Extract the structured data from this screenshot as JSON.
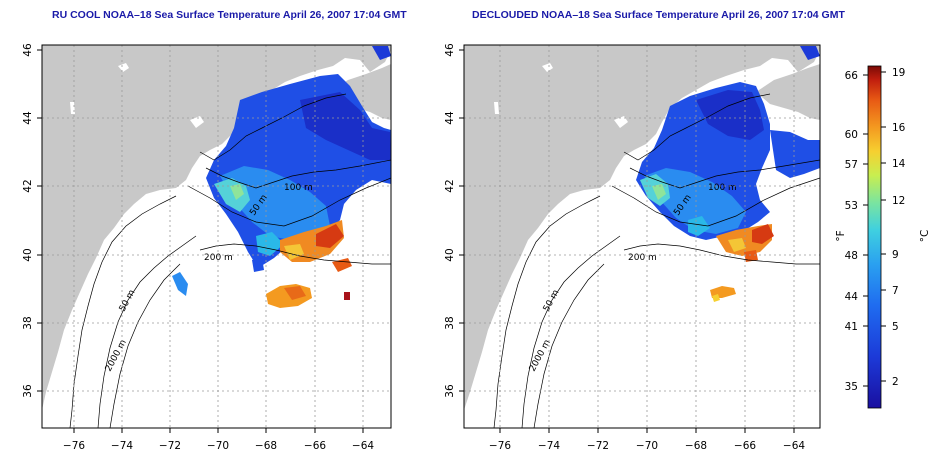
{
  "panels": [
    {
      "title": "RU COOL NOAA–18 Sea Surface Temperature April 26, 2007 17:04 GMT",
      "contour_labels": [
        "100 m",
        "50 m",
        "200 m",
        "50 m",
        "2000 m"
      ]
    },
    {
      "title": "DECLOUDED NOAA–18 Sea Surface Temperature April 26, 2007 17:04 GMT",
      "contour_labels": [
        "100 m",
        "50 m",
        "200 m",
        "50 m",
        "2000 m"
      ]
    }
  ],
  "map_axes": {
    "lon_ticks": [
      "−76",
      "−74",
      "−72",
      "−70",
      "−68",
      "−66",
      "−64"
    ],
    "lat_ticks": [
      "46",
      "44",
      "42",
      "40",
      "38",
      "36"
    ]
  },
  "colorbar": {
    "fahrenheit_ticks": [
      "66",
      "60",
      "57",
      "53",
      "48",
      "44",
      "41",
      "35"
    ],
    "celsius_ticks": [
      "19",
      "16",
      "14",
      "12",
      "9",
      "7",
      "5",
      "2"
    ],
    "fahrenheit_unit": "°F",
    "celsius_unit": "°C",
    "colors": [
      "#1a0fa0",
      "#1c3ad8",
      "#1f6cf0",
      "#2aa0f0",
      "#3fd0e0",
      "#7ae4a0",
      "#c8ee50",
      "#f6d030",
      "#f49a20",
      "#e85a14",
      "#c01e0e",
      "#7a0a06"
    ]
  },
  "colors": {
    "land": "#c8c8c8",
    "title": "#1a1aa8"
  }
}
